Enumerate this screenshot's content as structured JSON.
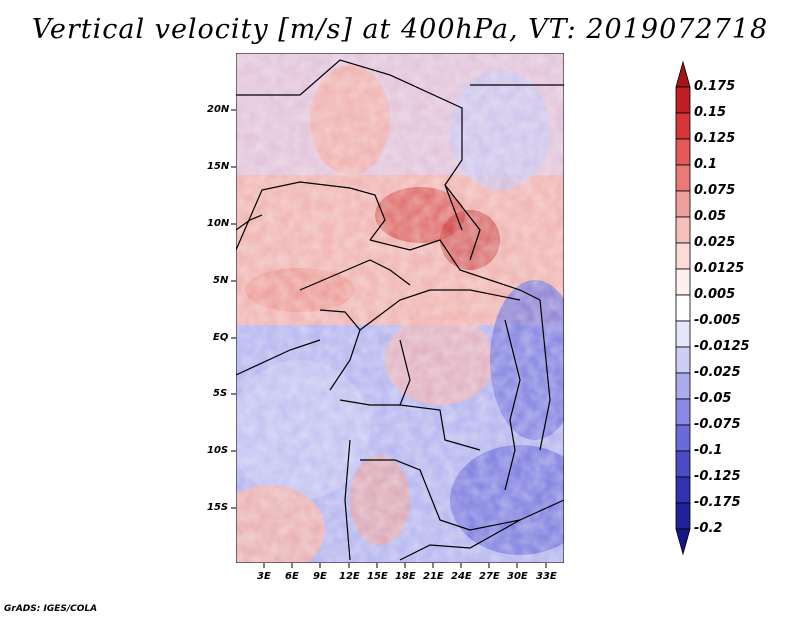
{
  "title": "Vertical velocity [m/s] at 400hPa, VT: 2019072718",
  "credit": "GrADS: IGES/COLA",
  "map": {
    "lat_labels": [
      "20N",
      "15N",
      "10N",
      "5N",
      "EQ",
      "5S",
      "10S",
      "15S"
    ],
    "lon_labels": [
      "3E",
      "6E",
      "9E",
      "12E",
      "15E",
      "18E",
      "21E",
      "24E",
      "27E",
      "30E",
      "33E"
    ]
  },
  "colorbar": {
    "labels": [
      "0.175",
      "0.15",
      "0.125",
      "0.1",
      "0.075",
      "0.05",
      "0.025",
      "0.0125",
      "0.005",
      "-0.005",
      "-0.0125",
      "-0.025",
      "-0.05",
      "-0.075",
      "-0.1",
      "-0.125",
      "-0.175",
      "-0.2"
    ],
    "colors": [
      "#a4151a",
      "#c01f26",
      "#d4363a",
      "#e35a58",
      "#ea7a78",
      "#f0a09c",
      "#f5c0bc",
      "#fadbd8",
      "#fdf0ee",
      "#ffffff",
      "#e6e6fb",
      "#cdcdf5",
      "#ababee",
      "#8a8ae6",
      "#6a6ad9",
      "#4b4bc8",
      "#3232b0",
      "#21219a",
      "#16168a"
    ]
  }
}
